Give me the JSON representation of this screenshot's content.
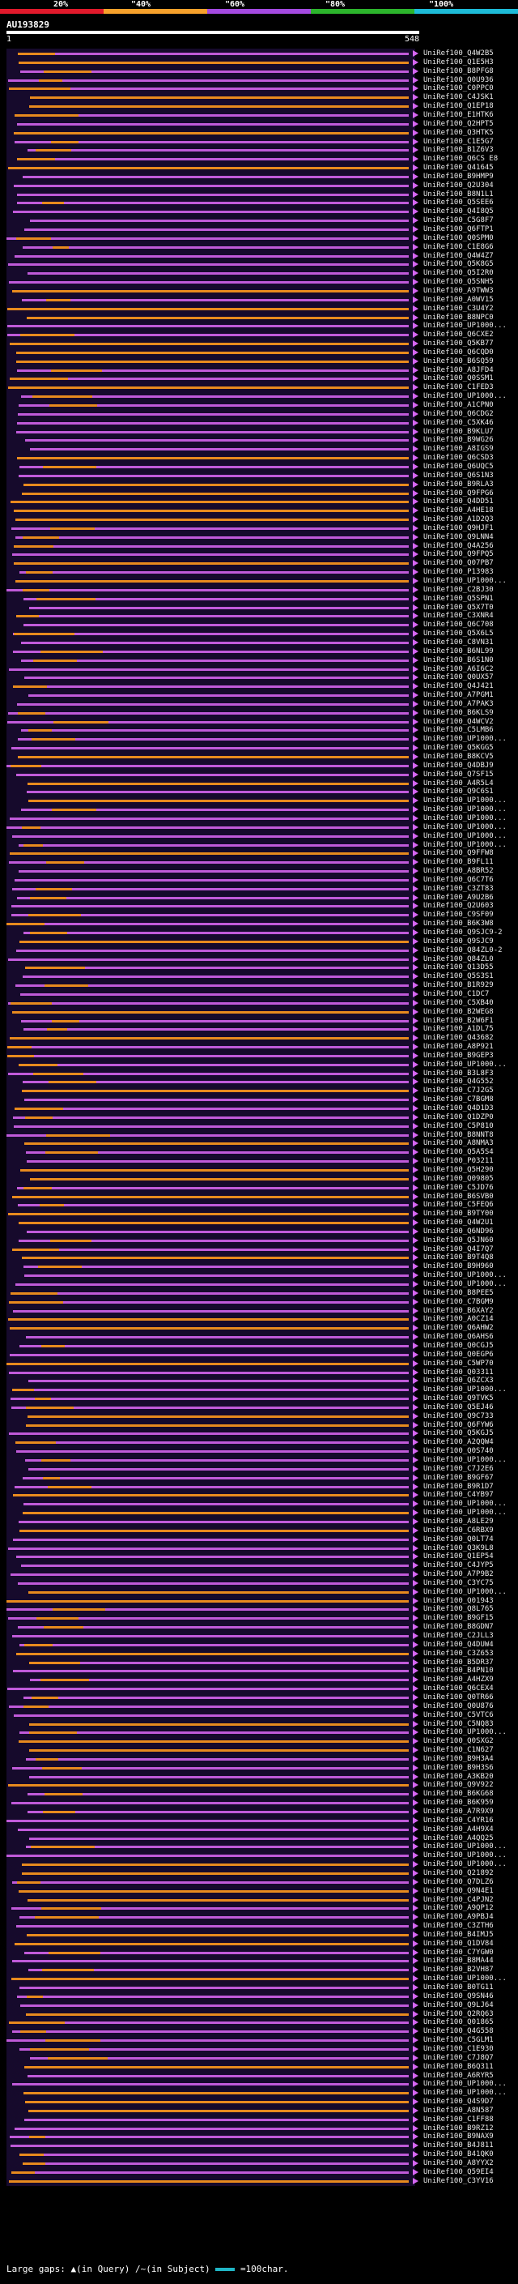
{
  "legend": {
    "percent_labels": [
      "20%",
      "\"40%",
      "\"60%",
      "\"80%",
      "\"100%"
    ],
    "colors": [
      "#e1192b",
      "#f7a12b",
      "#a44ae0",
      "#2cb42c",
      "#1dbbd8"
    ]
  },
  "query": {
    "id": "AU193829",
    "start": "1",
    "end": "548"
  },
  "hits": [
    "UniRef100_Q4W2B5",
    "UniRef100_Q1E5H3",
    "UniRef100_B8PFG8",
    "UniRef100_Q0U936",
    "UniRef100_C0PPC0",
    "UniRef100_C4JSK1",
    "UniRef100_Q1EP18",
    "UniRef100_E1HTK6",
    "UniRef100_Q2HPT5",
    "UniRef100_Q3HTK5",
    "UniRef100_C1E5G7",
    "UniRef100_B1Z6V3",
    "UniRef100_Q6CS E8",
    "UniRef100_Q41645",
    "UniRef100_B9HMP9",
    "UniRef100_Q2U304",
    "UniRef100_B8N1L1",
    "UniRef100_Q5SEE6",
    "UniRef100_Q4I8Q5",
    "UniRef100_C5G8F7",
    "UniRef100_Q6FTP1",
    "UniRef100_Q0SPM0",
    "UniRef100_C1E8G6",
    "UniRef100_Q4W4Z7",
    "UniRef100_Q5K8G5",
    "UniRef100_Q5I2R0",
    "UniRef100_Q5SNH5",
    "UniRef100_A9TWW3",
    "UniRef100_A0WV15",
    "UniRef100_C3U4Y2",
    "UniRef100_B8NPC0",
    "UniRef100_UP1000...",
    "UniRef100_Q6CXE2",
    "UniRef100_Q5KB77",
    "UniRef100_Q6CQD0",
    "UniRef100_B6SQ59",
    "UniRef100_A8JFD4",
    "UniRef100_Q0SSM1",
    "UniRef100_C1FED3",
    "UniRef100_UP1000...",
    "UniRef100_A1CPN0",
    "UniRef100_Q6CDG2",
    "UniRef100_C5XK46",
    "UniRef100_B9KLU7",
    "UniRef100_B9WG26",
    "UniRef100_A8IGS9",
    "UniRef100_Q6CSD3",
    "UniRef100_Q6UQC5",
    "UniRef100_Q6S1N3",
    "UniRef100_B9RLA3",
    "UniRef100_Q9FPG6",
    "UniRef100_Q4DD51",
    "UniRef100_A4HE18",
    "UniRef100_A1D2Q3",
    "UniRef100_Q9HJF1",
    "UniRef100_Q9LNN4",
    "UniRef100_Q4A256",
    "UniRef100_Q9FPQ5",
    "UniRef100_Q07PB7",
    "UniRef100_P13983",
    "UniRef100_UP1000...",
    "UniRef100_C2BJ30",
    "UniRef100_Q5SPN1",
    "UniRef100_Q5X7T0",
    "UniRef100_C3XNR4",
    "UniRef100_Q6C708",
    "UniRef100_Q5X6L5",
    "UniRef100_C8VN31",
    "UniRef100_B6NL99",
    "UniRef100_B6S1N0",
    "UniRef100_A6I6C2",
    "UniRef100_Q0UX57",
    "UniRef100_Q4J421",
    "UniRef100_A7PGM1",
    "UniRef100_A7PAK3",
    "UniRef100_B6KLS9",
    "UniRef100_Q4WCV2",
    "UniRef100_C5LMB6",
    "UniRef100_UP1000...",
    "UniRef100_Q5KGG5",
    "UniRef100_B8KCV5",
    "UniRef100_Q4DBJ9",
    "UniRef100_Q7SF15",
    "UniRef100_A4R5L4",
    "UniRef100_Q9C6S1",
    "UniRef100_UP1000...",
    "UniRef100_UP1000...",
    "UniRef100_UP1000...",
    "UniRef100_UP1000...",
    "UniRef100_UP1000...",
    "UniRef100_UP1000...",
    "UniRef100_Q9FFW8",
    "UniRef100_B9FL11",
    "UniRef100_A8BR52",
    "UniRef100_Q6C7T6",
    "UniRef100_C3ZT83",
    "UniRef100_A9U2B6",
    "UniRef100_Q2U603",
    "UniRef100_C9SF09",
    "UniRef100_B6K3W8",
    "UniRef100_Q9SJC9-2",
    "UniRef100_Q9SJC9",
    "UniRef100_Q84ZL0-2",
    "UniRef100_Q84ZL0",
    "UniRef100_Q13D55",
    "UniRef100_Q5S3S1",
    "UniRef100_B1R929",
    "UniRef100_C1DC7",
    "UniRef100_C5XB40",
    "UniRef100_B2WEG8",
    "UniRef100_B2W6F1",
    "UniRef100_A1DL75",
    "UniRef100_Q43682",
    "UniRef100_A8P921",
    "UniRef100_B9GEP3",
    "UniRef100_UP1000...",
    "UniRef100_B3L8F3",
    "UniRef100_Q4G552",
    "UniRef100_C7J2G5",
    "UniRef100_C7BGM8",
    "UniRef100_Q4D1D3",
    "UniRef100_Q1DZP0",
    "UniRef100_C5P810",
    "UniRef100_B8NNT8",
    "UniRef100_A8NMA3",
    "UniRef100_Q5A5S4",
    "UniRef100_P03211",
    "UniRef100_Q5H290",
    "UniRef100_Q09805",
    "UniRef100_C5JD76",
    "UniRef100_B6SVB0",
    "UniRef100_C5FEQ6",
    "UniRef100_B9TY00",
    "UniRef100_Q4W2U1",
    "UniRef100_Q6ND96",
    "UniRef100_Q5JN60",
    "UniRef100_Q4I7Q7",
    "UniRef100_B9T4Q8",
    "UniRef100_B9H960",
    "UniRef100_UP1000...",
    "UniRef100_UP1000...",
    "UniRef100_B8PEE5",
    "UniRef100_C7BGM9",
    "UniRef100_B6XAY2",
    "UniRef100_A0CZ14",
    "UniRef100_Q6AHW2",
    "UniRef100_Q6AHS6",
    "UniRef100_Q0CGJ5",
    "UniRef100_Q0EGP6",
    "UniRef100_C5WP70",
    "UniRef100_Q03311",
    "UniRef100_Q6ZCX3",
    "UniRef100_UP1000...",
    "UniRef100_Q9TVK5",
    "UniRef100_Q5EJ46",
    "UniRef100_Q9C733",
    "UniRef100_Q6FYW6",
    "UniRef100_Q5KGJ5",
    "UniRef100_A2QQW4",
    "UniRef100_Q0S740",
    "UniRef100_UP1000...",
    "UniRef100_C7J2E6",
    "UniRef100_B9GF67",
    "UniRef100_B9R1D7",
    "UniRef100_C4YB97",
    "UniRef100_UP1000...",
    "UniRef100_UP1000...",
    "UniRef100_A8LE29",
    "UniRef100_C6RBX9",
    "UniRef100_Q0LT74",
    "UniRef100_Q3K9L8",
    "UniRef100_Q1EP54",
    "UniRef100_C4JYP5",
    "UniRef100_A7P9B2",
    "UniRef100_C3YC75",
    "UniRef100_UP1000...",
    "UniRef100_Q01943",
    "UniRef100_Q8L765",
    "UniRef100_B9GF15",
    "UniRef100_B8GDN7",
    "UniRef100_C2JLL3",
    "UniRef100_Q4DUW4",
    "UniRef100_C3Z653",
    "UniRef100_B5DR37",
    "UniRef100_B4PN10",
    "UniRef100_A4HZX9",
    "UniRef100_Q6CEX4",
    "UniRef100_Q0TR66",
    "UniRef100_Q0U876",
    "UniRef100_C5VTC6",
    "UniRef100_C5NQ83",
    "UniRef100_UP1000...",
    "UniRef100_Q0SXG2",
    "UniRef100_C1N627",
    "UniRef100_B9H3A4",
    "UniRef100_B9H3S6",
    "UniRef100_A3KB20",
    "UniRef100_Q9V922",
    "UniRef100_B6KG68",
    "UniRef100_B6K959",
    "UniRef100_A7R9X9",
    "UniRef100_C4YR16",
    "UniRef100_A4H9X4",
    "UniRef100_A4QQ25",
    "UniRef100_UP1000...",
    "UniRef100_UP1000...",
    "UniRef100_UP1000...",
    "UniRef100_Q21892",
    "UniRef100_Q7DLZ6",
    "UniRef100_Q9N4E1",
    "UniRef100_C4PJN2",
    "UniRef100_A9QP12",
    "UniRef100_A9PBJ4",
    "UniRef100_C3ZTH6",
    "UniRef100_B4IMJ5",
    "UniRef100_Q1DV84",
    "UniRef100_C7YGW0",
    "UniRef100_B8MA44",
    "UniRef100_B2VH87",
    "UniRef100_UP1000...",
    "UniRef100_B0TG11",
    "UniRef100_Q9SN46",
    "UniRef100_Q9LJ64",
    "UniRef100_Q2RQ63",
    "UniRef100_Q01865",
    "UniRef100_Q4G558",
    "UniRef100_C5GLM1",
    "UniRef100_C1E930",
    "UniRef100_C7J8Q7",
    "UniRef100_B6Q311",
    "UniRef100_A6RYR5",
    "UniRef100_UP1000...",
    "UniRef100_UP1000...",
    "UniRef100_Q4S9D7",
    "UniRef100_A8N587",
    "UniRef100_C1FF88",
    "UniRef100_B9RZ12",
    "UniRef100_B9NAX9",
    "UniRef100_B4J811",
    "UniRef100_B41QK0",
    "UniRef100_A8YYX2",
    "UniRef100_Q59EI4",
    "UniRef100_C3YV16"
  ],
  "footer": {
    "prefix": "Large gaps:",
    "query_marker": "▲(in Query)",
    "subject_marker": "/~(in Subject)",
    "scale_label": "=100char."
  }
}
